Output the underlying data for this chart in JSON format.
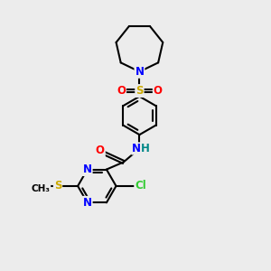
{
  "background_color": "#ececec",
  "atom_colors": {
    "C": "#000000",
    "N": "#0000ff",
    "O": "#ff0000",
    "S": "#ccaa00",
    "Cl": "#33cc33",
    "H": "#008888"
  },
  "bond_color": "#000000",
  "figsize": [
    3.0,
    3.0
  ],
  "dpi": 100
}
